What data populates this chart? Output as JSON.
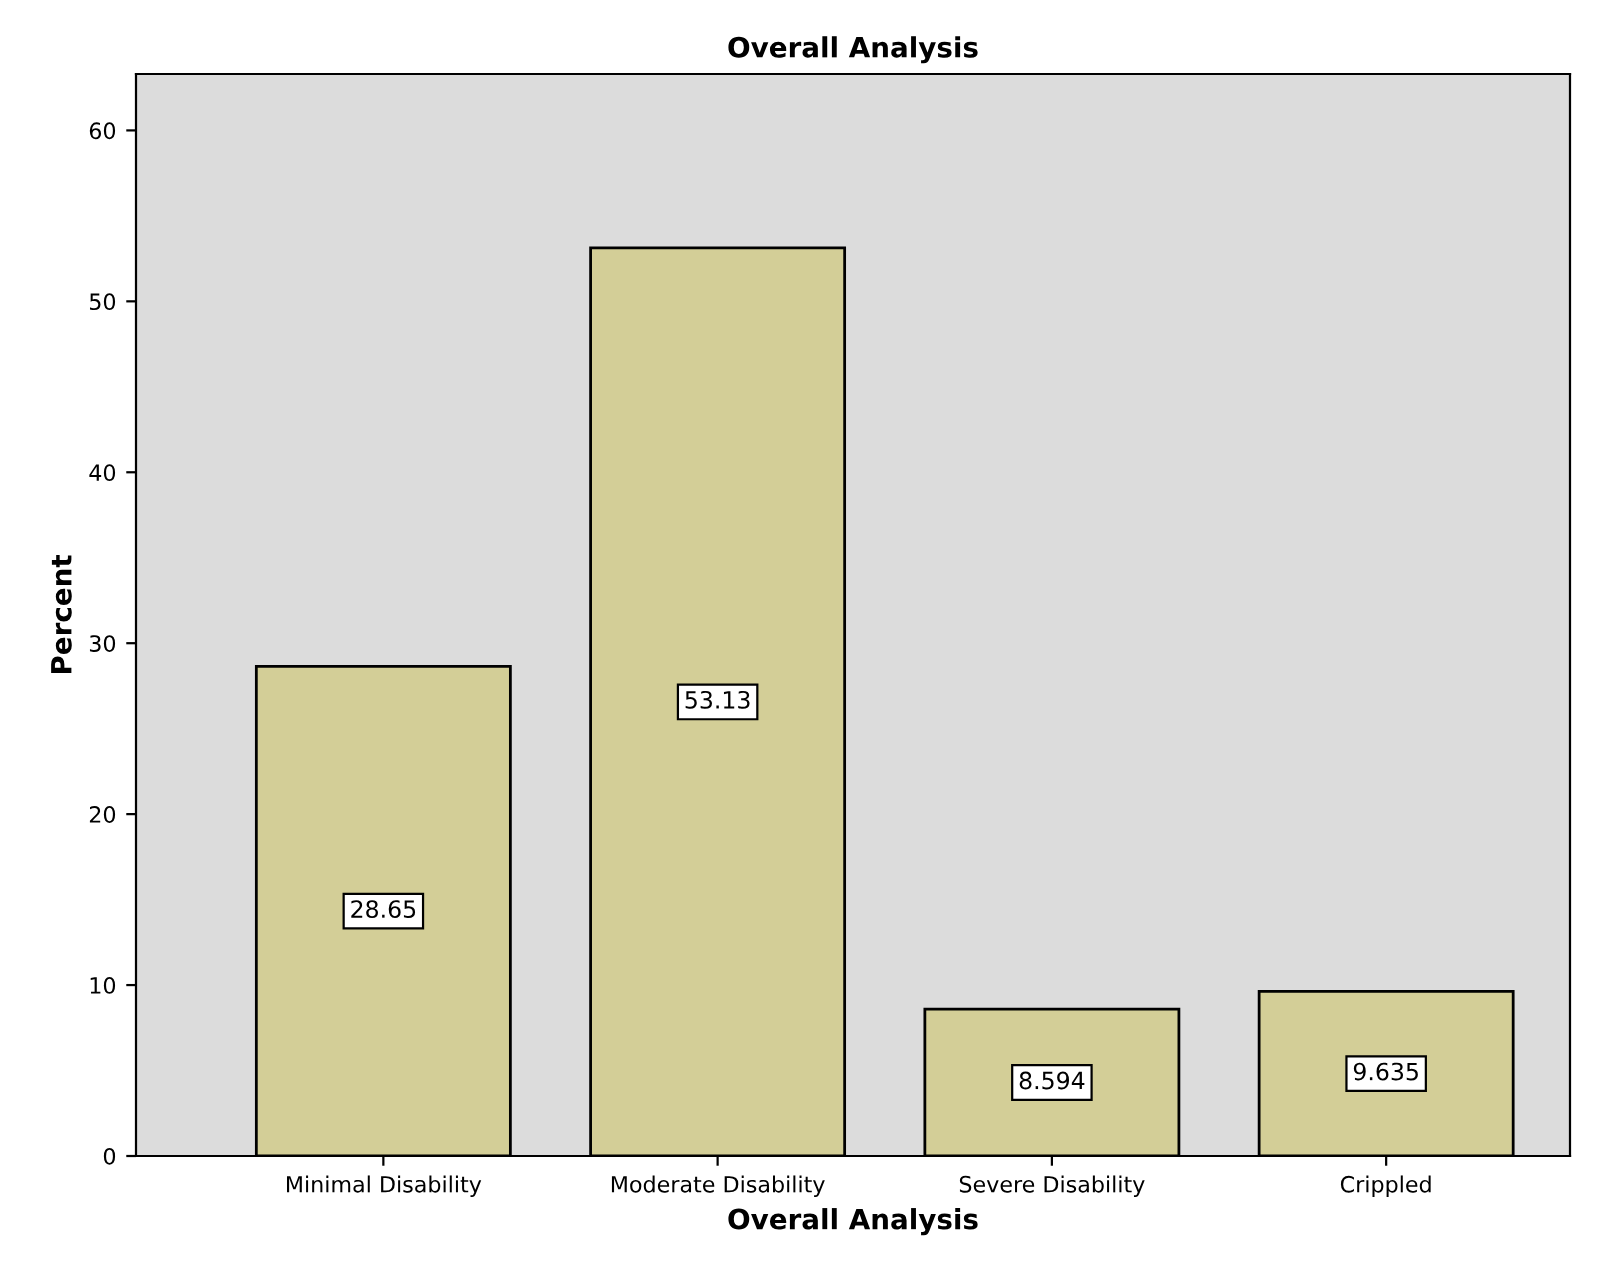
{
  "chart_data": {
    "type": "bar",
    "title": "Overall Analysis",
    "xlabel": "Overall Analysis",
    "ylabel": "Percent",
    "categories": [
      "Minimal Disability",
      "Moderate Disability",
      "Severe Disability",
      "Crippled"
    ],
    "values": [
      28.65,
      53.13,
      8.594,
      9.635
    ],
    "color": "#d3ce97",
    "data_labels": true,
    "ylim": [
      0,
      63.3
    ],
    "yticks": [
      0,
      10,
      20,
      30,
      40,
      50,
      60
    ],
    "grid": false
  }
}
